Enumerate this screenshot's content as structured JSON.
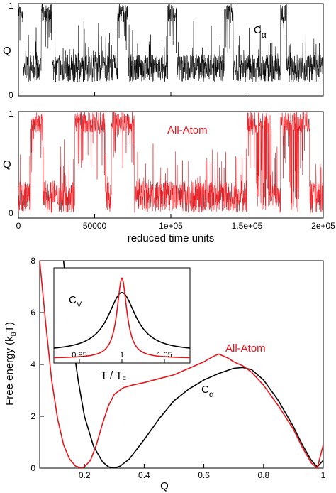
{
  "chart_data": [
    {
      "type": "line",
      "panel": "top",
      "ylabel": "Q",
      "ylim": [
        0,
        1
      ],
      "xlim": [
        0,
        200000
      ],
      "yticks": [
        "0",
        "1"
      ],
      "series": [
        {
          "name": "C",
          "name_subscript": "α",
          "color": "#000000",
          "states": [
            {
              "x": [
                0,
                3000
              ],
              "level": "high"
            },
            {
              "x": [
                3000,
                15000
              ],
              "level": "low"
            },
            {
              "x": [
                15000,
                22000
              ],
              "level": "high"
            },
            {
              "x": [
                22000,
                65000
              ],
              "level": "low"
            },
            {
              "x": [
                65000,
                72000
              ],
              "level": "high"
            },
            {
              "x": [
                72000,
                98000
              ],
              "level": "low"
            },
            {
              "x": [
                98000,
                104000
              ],
              "level": "high"
            },
            {
              "x": [
                104000,
                135000
              ],
              "level": "low"
            },
            {
              "x": [
                135000,
                141000
              ],
              "level": "high"
            },
            {
              "x": [
                141000,
                172000
              ],
              "level": "low"
            },
            {
              "x": [
                172000,
                176000
              ],
              "level": "high"
            },
            {
              "x": [
                176000,
                200000
              ],
              "level": "low"
            }
          ],
          "high_q": [
            0.8,
            1.0
          ],
          "low_q": [
            0.15,
            0.45
          ]
        }
      ]
    },
    {
      "type": "line",
      "panel": "middle",
      "ylabel": "Q",
      "xlabel": "reduced time units",
      "ylim": [
        0,
        1
      ],
      "xlim": [
        0,
        200000
      ],
      "yticks": [
        "0",
        "1"
      ],
      "xticks": [
        {
          "value": 0,
          "label": "0"
        },
        {
          "value": 50000,
          "label": "50000"
        },
        {
          "value": 100000,
          "label": "1e+05"
        },
        {
          "value": 150000,
          "label": "1.5e+05"
        },
        {
          "value": 200000,
          "label": "2e+05"
        }
      ],
      "series": [
        {
          "name": "All-Atom",
          "color": "#e8141a",
          "states": [
            {
              "x": [
                0,
                8000
              ],
              "level": "low"
            },
            {
              "x": [
                8000,
                16000
              ],
              "level": "high"
            },
            {
              "x": [
                16000,
                37000
              ],
              "level": "low"
            },
            {
              "x": [
                37000,
                57000
              ],
              "level": "high"
            },
            {
              "x": [
                57000,
                61000
              ],
              "level": "low"
            },
            {
              "x": [
                61000,
                63000
              ],
              "level": "high"
            },
            {
              "x": [
                63000,
                76000
              ],
              "level": "high"
            },
            {
              "x": [
                76000,
                150000
              ],
              "level": "low"
            },
            {
              "x": [
                150000,
                156000
              ],
              "level": "high"
            },
            {
              "x": [
                156000,
                166000
              ],
              "level": "mixed"
            },
            {
              "x": [
                166000,
                172000
              ],
              "level": "low"
            },
            {
              "x": [
                172000,
                178000
              ],
              "level": "high"
            },
            {
              "x": [
                178000,
                184000
              ],
              "level": "mixed"
            },
            {
              "x": [
                184000,
                191000
              ],
              "level": "high"
            },
            {
              "x": [
                191000,
                200000
              ],
              "level": "low"
            }
          ],
          "high_q": [
            0.8,
            1.0
          ],
          "low_q": [
            0.05,
            0.35
          ]
        }
      ]
    },
    {
      "type": "line",
      "panel": "bottom",
      "xlabel": "Q",
      "ylabel": "Free energy (k",
      "ylabel_subscript": "B",
      "ylabel_suffix": "T)",
      "xlim": [
        0.05,
        1.0
      ],
      "ylim": [
        0,
        8
      ],
      "xticks": [
        "0.2",
        "0.4",
        "0.6",
        "0.8",
        "1"
      ],
      "yticks": [
        "0",
        "2",
        "4",
        "6",
        "8"
      ],
      "series": [
        {
          "name": "C",
          "name_subscript": "α",
          "color": "#000000",
          "x": [
            0.13,
            0.15,
            0.18,
            0.2,
            0.23,
            0.26,
            0.28,
            0.3,
            0.32,
            0.35,
            0.4,
            0.45,
            0.5,
            0.55,
            0.6,
            0.65,
            0.7,
            0.73,
            0.76,
            0.8,
            0.85,
            0.9,
            0.93,
            0.96,
            0.98,
            1.0
          ],
          "y": [
            8.0,
            5.7,
            3.3,
            2.0,
            0.85,
            0.25,
            0.05,
            0.0,
            0.08,
            0.35,
            1.1,
            1.9,
            2.6,
            3.05,
            3.4,
            3.65,
            3.85,
            3.88,
            3.8,
            3.4,
            2.6,
            1.6,
            0.9,
            0.3,
            0.05,
            0.3
          ]
        },
        {
          "name": "All-Atom",
          "color": "#e8141a",
          "x": [
            0.05,
            0.07,
            0.09,
            0.11,
            0.13,
            0.15,
            0.17,
            0.19,
            0.2,
            0.22,
            0.24,
            0.26,
            0.28,
            0.3,
            0.33,
            0.36,
            0.4,
            0.45,
            0.5,
            0.55,
            0.6,
            0.63,
            0.65,
            0.68,
            0.7,
            0.73,
            0.76,
            0.8,
            0.85,
            0.9,
            0.93,
            0.96,
            0.98,
            1.0
          ],
          "y": [
            8.0,
            5.6,
            3.4,
            1.9,
            0.9,
            0.35,
            0.08,
            0.0,
            0.05,
            0.3,
            0.9,
            1.7,
            2.4,
            2.85,
            3.1,
            3.2,
            3.3,
            3.45,
            3.6,
            3.85,
            4.1,
            4.3,
            4.4,
            4.25,
            4.1,
            3.95,
            3.7,
            3.2,
            2.4,
            1.5,
            0.8,
            0.2,
            0.0,
            0.9
          ]
        }
      ],
      "inset": {
        "xlabel": "T / T",
        "xlabel_subscript": "F",
        "ylabel": "C",
        "ylabel_subscript": "V",
        "xlim": [
          0.92,
          1.08
        ],
        "xticks": [
          "0.95",
          "1",
          "1.05"
        ],
        "series": [
          {
            "name": "C",
            "name_subscript": "α",
            "color": "#000000",
            "center": 1.0,
            "height": 0.62,
            "width": 0.02,
            "baseline": 0.12
          },
          {
            "name": "All-Atom",
            "color": "#e8141a",
            "center": 1.0,
            "height": 0.84,
            "width": 0.007,
            "baseline": 0.05
          }
        ]
      }
    }
  ]
}
